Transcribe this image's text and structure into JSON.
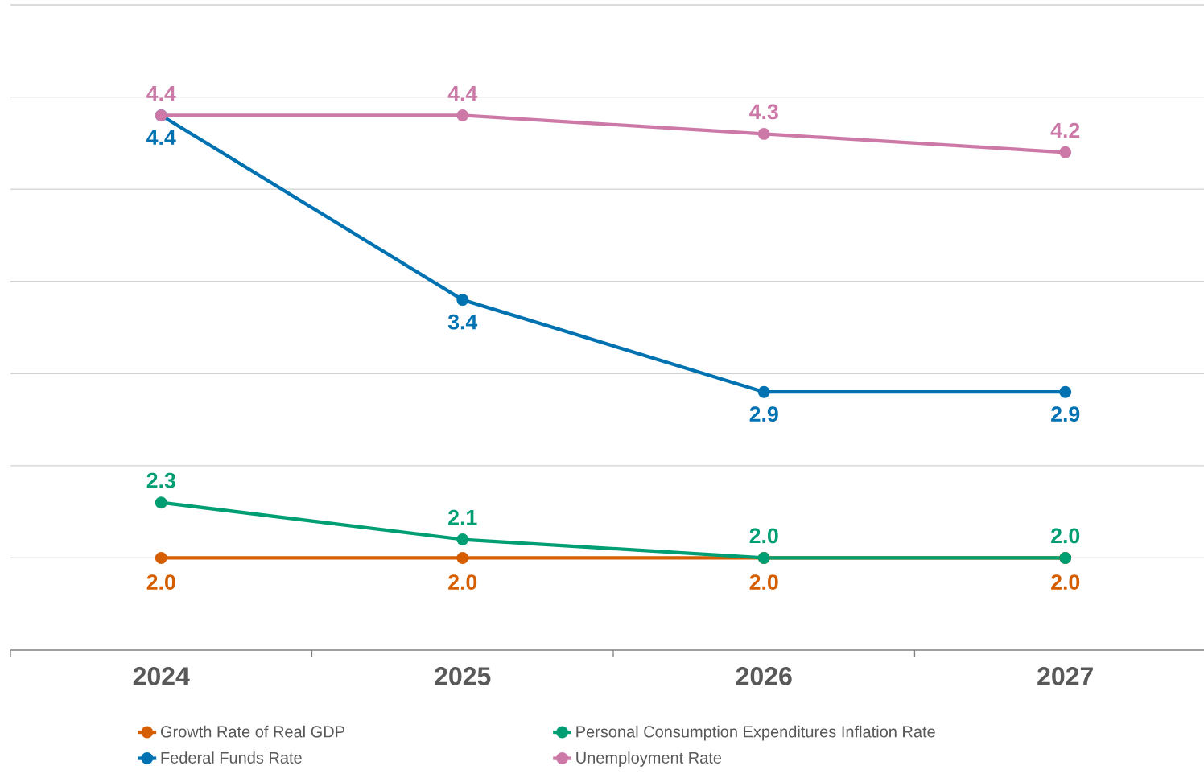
{
  "chart_data": {
    "type": "line",
    "categories": [
      "2024",
      "2025",
      "2026",
      "2027"
    ],
    "series": [
      {
        "name": "Growth Rate of Real GDP",
        "color": "#d55e00",
        "values": [
          2.0,
          2.0,
          2.0,
          2.0
        ],
        "value_labels": [
          "2.0",
          "2.0",
          "2.0",
          "2.0"
        ]
      },
      {
        "name": "Personal Consumption Expenditures Inflation Rate",
        "color": "#009e73",
        "values": [
          2.3,
          2.1,
          2.0,
          2.0
        ],
        "value_labels": [
          "2.3",
          "2.1",
          "2.0",
          "2.0"
        ]
      },
      {
        "name": "Federal Funds Rate",
        "color": "#0072b2",
        "values": [
          4.4,
          3.4,
          2.9,
          2.9
        ],
        "value_labels": [
          "4.4",
          "3.4",
          "2.9",
          "2.9"
        ]
      },
      {
        "name": "Unemployment Rate",
        "color": "#cc79a7",
        "values": [
          4.4,
          4.4,
          4.3,
          4.2
        ],
        "value_labels": [
          "4.4",
          "4.4",
          "4.3",
          "4.2"
        ]
      }
    ],
    "ylim": [
      1.5,
      5.0
    ],
    "yticks": [
      {
        "value": 2.0,
        "label": null
      },
      {
        "value": 2.5,
        "label": null
      },
      {
        "value": 3.0,
        "label": null
      },
      {
        "value": 3.5,
        "label": null
      },
      {
        "value": 4.0,
        "label": null
      },
      {
        "value": 4.5,
        "label": null
      },
      {
        "value": 5.0,
        "label": null
      }
    ],
    "tick_labels": "x",
    "grid": "y",
    "legend": "bottom",
    "marker": "circle",
    "line_style": "solid"
  }
}
